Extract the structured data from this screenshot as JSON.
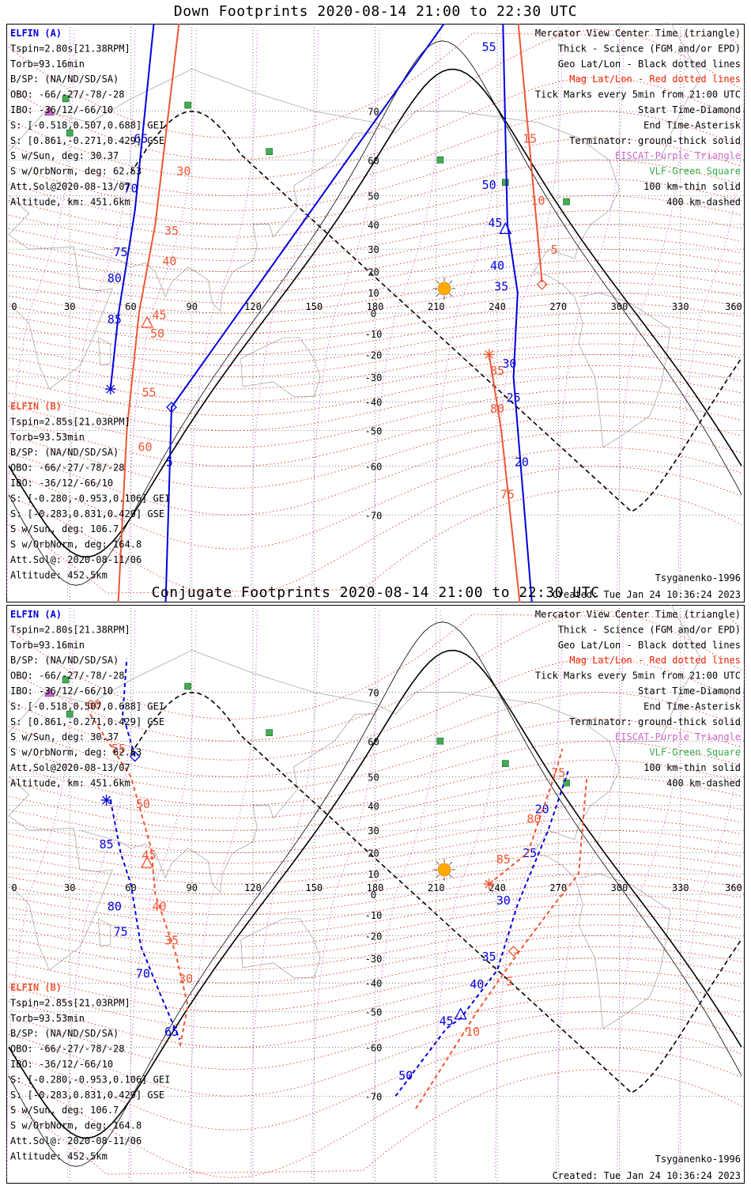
{
  "panels": [
    {
      "title": "Down Footprints 2020-08-14 21:00 to 22:30 UTC",
      "sat_a": {
        "name": "ELFIN (A)",
        "lines": [
          "Tspin=2.80s[21.38RPM]",
          "Torb=93.16min",
          "B/SP: (NA/ND/SD/SA)",
          "OBO: -66/-27/-78/-28",
          "IBO: -36/12/-66/10",
          "S: [-0.518,0.507,0.688] GEI",
          "S: [0.861,-0.271,0.429] GSE",
          "S w/Sun, deg: 30.37",
          "S w/OrbNorm, deg: 62.53",
          "Att.Sol@2020-08-13/07",
          "Altitude, km: 451.6km"
        ]
      },
      "sat_b": {
        "name": "ELFIN (B)",
        "lines": [
          "Tspin=2.85s[21.03RPM]",
          "Torb=93.53min",
          "B/SP: (NA/ND/SD/SA)",
          "OBO: -66/-27/-78/-28",
          "IBO: -36/12/-66/10",
          "S: [-0.280,-0.953,0.106] GEI",
          "S: [-0.283,0.831,0.429] GSE",
          "S w/Sun, deg: 106.7",
          "S w/OrbNorm, deg: 164.8",
          "Att.Sol@: 2020-08-11/06",
          "Altitude: 452.5km"
        ]
      },
      "legend": [
        "Mercator View Center Time (triangle)",
        "Thick - Science (FGM and/or EPD)",
        "Geo Lat/Lon - Black dotted lines",
        "Mag Lat/Lon - Red dotted lines",
        "Tick Marks every 5min from 21:00 UTC",
        "Start Time-Diamond",
        "End Time-Asterisk",
        "Terminator: ground-thick solid",
        "EISCAT-Purple Triangle",
        "VLF-Green Square",
        "100 km-thin solid",
        "400 km-dashed"
      ],
      "model": "Tsyganenko-1996",
      "created": "Created: Tue Jan 24 10:36:24 2023",
      "tracks": [
        {
          "sat": "A",
          "dashed": false,
          "pts": [
            [
              50,
              -35
            ],
            [
              54,
              0
            ],
            [
              62,
              45
            ],
            [
              75,
              85
            ]
          ],
          "labels": [
            {
              "t": "85",
              "lon": 52,
              "lat": -5
            },
            {
              "t": "80",
              "lon": 52,
              "lat": 15
            },
            {
              "t": "75",
              "lon": 55,
              "lat": 27
            },
            {
              "t": "70",
              "lon": 60,
              "lat": 51
            },
            {
              "t": "65",
              "lon": 65,
              "lat": 64
            }
          ],
          "diamond": null,
          "asterisk": [
            50,
            -35
          ],
          "triangle": null
        },
        {
          "sat": "B",
          "dashed": false,
          "pts": [
            [
              52,
              -85
            ],
            [
              58,
              -50
            ],
            [
              64,
              0
            ],
            [
              72,
              40
            ],
            [
              88,
              85
            ]
          ],
          "labels": [
            {
              "t": "60",
              "lon": 67,
              "lat": -56
            },
            {
              "t": "55",
              "lon": 69,
              "lat": -38
            },
            {
              "t": "50",
              "lon": 73,
              "lat": -12
            },
            {
              "t": "45",
              "lon": 74,
              "lat": -3
            },
            {
              "t": "40",
              "lon": 79,
              "lat": 23
            },
            {
              "t": "35",
              "lon": 80,
              "lat": 36
            },
            {
              "t": "30",
              "lon": 86,
              "lat": 56
            },
            {
              "t": "25",
              "lon": 94,
              "lat": 84
            },
            {
              "t": "65",
              "lon": 62,
              "lat": -84
            }
          ],
          "diamond": null,
          "asterisk": null,
          "triangle": [
            68,
            -5
          ]
        },
        {
          "sat": "A",
          "dashed": false,
          "pts": [
            [
              76,
              -85
            ],
            [
              80,
              -42
            ],
            [
              240,
              85
            ]
          ],
          "labels": [
            {
              "t": "5",
              "lon": 79,
              "lat": -60
            }
          ],
          "diamond": [
            80,
            -42
          ],
          "asterisk": null,
          "triangle": null
        },
        {
          "sat": "A",
          "dashed": false,
          "pts": [
            [
              242,
              85
            ],
            [
              245,
              40
            ],
            [
              250,
              10
            ],
            [
              248,
              -30
            ],
            [
              260,
              -85
            ]
          ],
          "labels": [
            {
              "t": "55",
              "lon": 236,
              "lat": 78
            },
            {
              "t": "50",
              "lon": 236,
              "lat": 52
            },
            {
              "t": "45",
              "lon": 239,
              "lat": 39
            },
            {
              "t": "40",
              "lon": 240,
              "lat": 21
            },
            {
              "t": "35",
              "lon": 242,
              "lat": 11
            },
            {
              "t": "30",
              "lon": 246,
              "lat": -26
            },
            {
              "t": "25",
              "lon": 248,
              "lat": -40
            },
            {
              "t": "20",
              "lon": 252,
              "lat": -60
            }
          ],
          "diamond": null,
          "asterisk": null,
          "triangle": [
            244,
            38
          ]
        },
        {
          "sat": "B",
          "dashed": false,
          "pts": [
            [
              247,
              85
            ],
            [
              262,
              15
            ]
          ],
          "labels": [
            {
              "t": "15",
              "lon": 256,
              "lat": 64
            },
            {
              "t": "10",
              "lon": 260,
              "lat": 47
            },
            {
              "t": "5",
              "lon": 268,
              "lat": 28
            }
          ],
          "diamond": [
            262,
            14
          ],
          "asterisk": null,
          "triangle": null
        },
        {
          "sat": "B",
          "dashed": false,
          "pts": [
            [
              236,
              -20
            ],
            [
              242,
              -50
            ],
            [
              255,
              -85
            ]
          ],
          "labels": [
            {
              "t": "85",
              "lon": 240,
              "lat": -29
            },
            {
              "t": "80",
              "lon": 240,
              "lat": -44
            },
            {
              "t": "75",
              "lon": 245,
              "lat": -67
            }
          ],
          "diamond": null,
          "asterisk": [
            236,
            -20
          ],
          "triangle": null
        }
      ]
    },
    {
      "title": "Conjugate Footprints 2020-08-14 21:00 to 22:30 UTC",
      "sat_a": {
        "name": "ELFIN (A)",
        "lines": [
          "Tspin=2.80s[21.38RPM]",
          "Torb=93.16min",
          "B/SP: (NA/ND/SD/SA)",
          "OBO: -66/-27/-78/-28",
          "IBO: -36/12/-66/10",
          "S: [-0.518,0.507,0.688] GEI",
          "S: [0.861,-0.271,0.429] GSE",
          "S w/Sun, deg: 30.37",
          "S w/OrbNorm, deg: 62.53",
          "Att.Sol@2020-08-13/07",
          "Altitude, km: 451.6km"
        ]
      },
      "sat_b": {
        "name": "ELFIN (B)",
        "lines": [
          "Tspin=2.85s[21.03RPM]",
          "Torb=93.53min",
          "B/SP: (NA/ND/SD/SA)",
          "OBO: -66/-27/-78/-28",
          "IBO: -36/12/-66/10",
          "S: [-0.280,-0.953,0.106] GEI",
          "S: [-0.283,0.831,0.429] GSE",
          "S w/Sun, deg: 106.7",
          "S w/OrbNorm, deg: 164.8",
          "Att.Sol@: 2020-08-11/06",
          "Altitude: 452.5km"
        ]
      },
      "legend": [
        "Mercator View Center Time (triangle)",
        "Thick - Science (FGM and/or EPD)",
        "Geo Lat/Lon - Black dotted lines",
        "Mag Lat/Lon - Red dotted lines",
        "Tick Marks every 5min from 21:00 UTC",
        "Start Time-Diamond",
        "End Time-Asterisk",
        "Terminator: ground-thick solid",
        "EISCAT-Purple Triangle",
        "VLF-Green Square",
        "100 km-thin solid",
        "400 km-dashed"
      ],
      "model": "Tsyganenko-1996",
      "created": "Created: Tue Jan 24 10:36:24 2023",
      "tracks": [
        {
          "sat": "A",
          "dashed": true,
          "pts": [
            [
              50,
              42
            ],
            [
              55,
              20
            ],
            [
              60,
              5
            ],
            [
              65,
              -25
            ],
            [
              75,
              -45
            ],
            [
              84,
              -58
            ]
          ],
          "labels": [
            {
              "t": "85",
              "lon": 48,
              "lat": 22
            },
            {
              "t": "80",
              "lon": 52,
              "lat": -8
            },
            {
              "t": "75",
              "lon": 55,
              "lat": -20
            },
            {
              "t": "70",
              "lon": 66,
              "lat": -38
            },
            {
              "t": "65",
              "lon": 80,
              "lat": -57
            }
          ],
          "diamond": [
            62,
            56
          ],
          "asterisk": [
            48,
            42
          ],
          "triangle": null
        },
        {
          "sat": "A",
          "dashed": true,
          "pts": [
            [
              62,
              56
            ],
            [
              56,
              66
            ],
            [
              58,
              75
            ]
          ],
          "labels": [],
          "diamond": null,
          "asterisk": null,
          "triangle": null
        },
        {
          "sat": "B",
          "dashed": true,
          "pts": [
            [
              40,
              66
            ],
            [
              60,
              50
            ],
            [
              70,
              22
            ],
            [
              72,
              0
            ],
            [
              82,
              -28
            ],
            [
              88,
              -48
            ],
            [
              84,
              -60
            ]
          ],
          "labels": [
            {
              "t": "60",
              "lon": 42,
              "lat": 67
            },
            {
              "t": "55",
              "lon": 54,
              "lat": 57
            },
            {
              "t": "50",
              "lon": 66,
              "lat": 39
            },
            {
              "t": "45",
              "lon": 69,
              "lat": 17
            },
            {
              "t": "40",
              "lon": 74,
              "lat": -8
            },
            {
              "t": "35",
              "lon": 80,
              "lat": -24
            },
            {
              "t": "30",
              "lon": 87,
              "lat": -40
            }
          ],
          "diamond": null,
          "asterisk": null,
          "triangle": [
            68,
            15
          ]
        },
        {
          "sat": "A",
          "dashed": true,
          "pts": [
            [
              190,
              -70
            ],
            [
              215,
              -55
            ],
            [
              222,
              -52
            ],
            [
              240,
              -35
            ],
            [
              250,
              -5
            ],
            [
              265,
              30
            ],
            [
              275,
              52
            ]
          ],
          "labels": [
            {
              "t": "50",
              "lon": 195,
              "lat": -67
            },
            {
              "t": "45",
              "lon": 215,
              "lat": -54
            },
            {
              "t": "40",
              "lon": 230,
              "lat": -42
            },
            {
              "t": "35",
              "lon": 236,
              "lat": -31
            },
            {
              "t": "30",
              "lon": 243,
              "lat": -5
            },
            {
              "t": "25",
              "lon": 256,
              "lat": 18
            },
            {
              "t": "20",
              "lon": 262,
              "lat": 37
            }
          ],
          "diamond": null,
          "asterisk": null,
          "triangle": [
            222,
            -51
          ]
        },
        {
          "sat": "B",
          "dashed": true,
          "pts": [
            [
              200,
              -72
            ],
            [
              230,
              -50
            ],
            [
              250,
              -28
            ],
            [
              268,
              -5
            ],
            [
              280,
              10
            ],
            [
              284,
              50
            ]
          ],
          "labels": [
            {
              "t": "10",
              "lon": 228,
              "lat": -57
            },
            {
              "t": "5",
              "lon": 246,
              "lat": -41
            },
            {
              "t": "85",
              "lon": 243,
              "lat": 15
            },
            {
              "t": "80",
              "lon": 258,
              "lat": 33
            },
            {
              "t": "75",
              "lon": 270,
              "lat": 50
            }
          ],
          "diamond": [
            248,
            -27
          ],
          "asterisk": [
            236,
            5
          ],
          "triangle": null
        },
        {
          "sat": "B",
          "dashed": true,
          "pts": [
            [
              236,
              5
            ],
            [
              255,
              20
            ],
            [
              268,
              50
            ],
            [
              272,
              58
            ]
          ],
          "labels": [],
          "diamond": null,
          "asterisk": null,
          "triangle": null
        }
      ]
    }
  ],
  "map": {
    "x_ticks": [
      "0",
      "30",
      "60",
      "90",
      "120",
      "150",
      "180",
      "210",
      "240",
      "270",
      "300",
      "330",
      "360"
    ],
    "y_ticks": [
      "70",
      "60",
      "50",
      "40",
      "30",
      "20",
      "10",
      "0",
      "-10",
      "-20",
      "-30",
      "-40",
      "-50",
      "-60",
      "-70"
    ],
    "vlf_sites": [
      [
        28,
        72
      ],
      [
        30,
        66
      ],
      [
        88,
        71
      ],
      [
        128,
        62
      ],
      [
        212,
        60
      ],
      [
        244,
        54
      ],
      [
        274,
        48
      ]
    ],
    "eiscat_sites": [
      [
        20,
        70
      ]
    ],
    "sun": [
      214,
      12
    ],
    "colors": {
      "sat_a": "#0000dd",
      "sat_b": "#ee5533",
      "legend_mag": "#ee2200",
      "legend_eiscat": "#cc66cc",
      "legend_vlf": "#33aa44",
      "vlf": "#44aa55",
      "sun": "#ffaa00",
      "coast": "#aaaaaa",
      "geo_grid": "#444444",
      "mag_grid": "#e02010",
      "mag_lon": "#cc66dd"
    }
  }
}
